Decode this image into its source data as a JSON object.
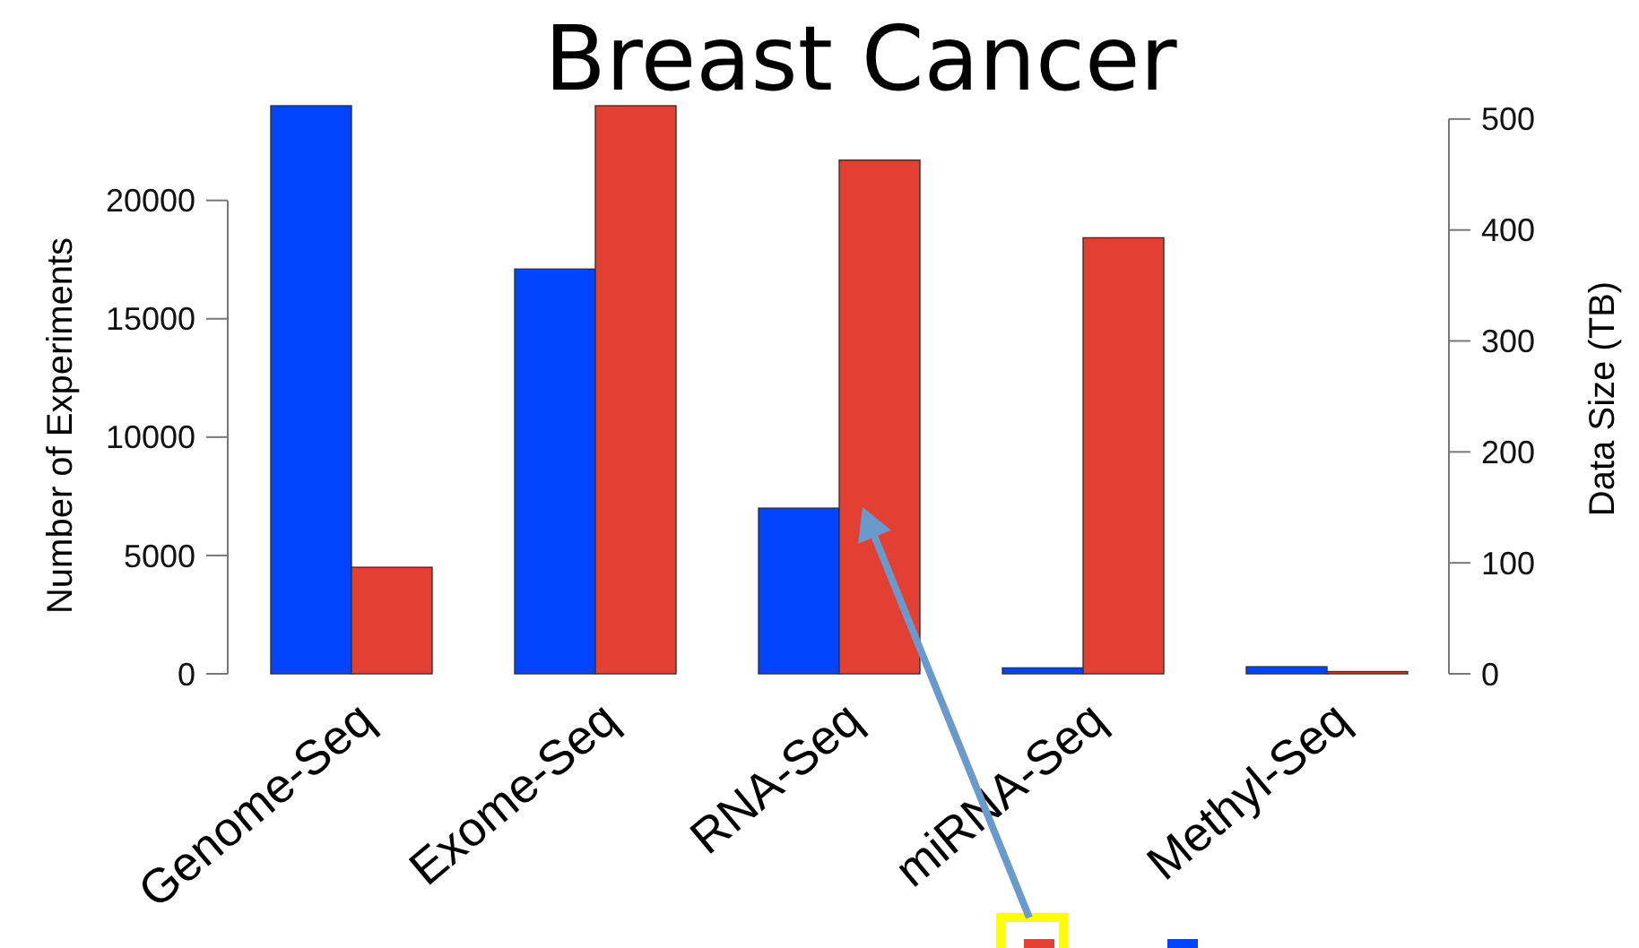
{
  "chart_data": {
    "type": "bar",
    "title": "Breast Cancer",
    "ylabel": "Number of Experiments",
    "y2label": "Data Size (TB)",
    "categories": [
      "Genome-Seq",
      "Exome-Seq",
      "RNA-Seq",
      "miRNA-Seq",
      "Methyl-Seq"
    ],
    "series": [
      {
        "color": "#0044ff",
        "values": [
          24000,
          17100,
          7000,
          250,
          300
        ]
      },
      {
        "color": "#e33f33",
        "axis": "y2",
        "values": [
          96,
          512,
          463,
          393,
          2
        ]
      }
    ],
    "ylim": [
      0,
      24000
    ],
    "yticks": [
      0,
      5000,
      10000,
      15000,
      20000
    ],
    "y2lim": [
      0,
      512
    ],
    "y2ticks": [
      0,
      100,
      200,
      300,
      400,
      500
    ],
    "grid": false
  }
}
